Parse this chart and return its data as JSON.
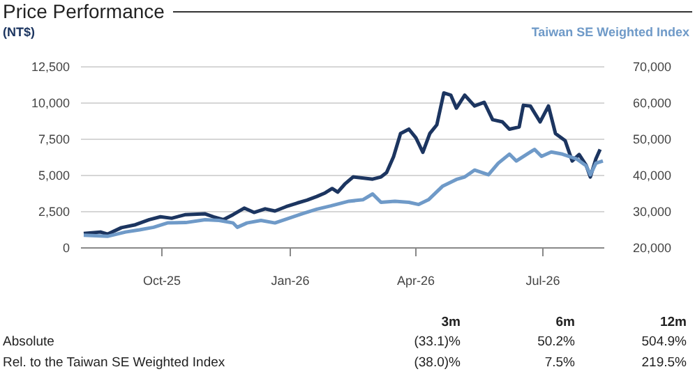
{
  "chart_data": {
    "type": "line",
    "title": "Price Performance",
    "ylabel": "(NT$)",
    "y2label": "Taiwan SE Weighted Index",
    "xlim": [
      "2025-08-04",
      "2026-08-14"
    ],
    "xticks": [
      {
        "value": "2025-10-01",
        "label": "Oct-25"
      },
      {
        "value": "2026-01-01",
        "label": "Jan-26"
      },
      {
        "value": "2026-04-01",
        "label": "Apr-26"
      },
      {
        "value": "2026-07-01",
        "label": "Jul-26"
      }
    ],
    "ylim": [
      0,
      12500
    ],
    "yticks": [
      0,
      {
        "value": 2500,
        "label": "2,500"
      },
      {
        "value": 5000,
        "label": "5,000"
      },
      {
        "value": 7500,
        "label": "7,500"
      },
      {
        "value": 10000,
        "label": "10,000"
      },
      {
        "value": 12500,
        "label": "12,500"
      }
    ],
    "y2lim": [
      20000,
      70000
    ],
    "y2ticks": [
      {
        "value": 20000,
        "label": "20,000"
      },
      {
        "value": 30000,
        "label": "30,000"
      },
      {
        "value": 40000,
        "label": "40,000"
      },
      {
        "value": 50000,
        "label": "50,000"
      },
      {
        "value": 60000,
        "label": "60,000"
      },
      {
        "value": 70000,
        "label": "70,000"
      }
    ],
    "grid": "y",
    "marker": "none",
    "line_style": "solid",
    "series": [
      {
        "color": "#1c3560",
        "x": [
          "2025-08-06",
          "2025-08-18",
          "2025-08-23",
          "2025-09-02",
          "2025-09-12",
          "2025-09-22",
          "2025-09-30",
          "2025-10-08",
          "2025-10-18",
          "2025-11-01",
          "2025-11-07",
          "2025-11-14",
          "2025-11-21",
          "2025-11-29",
          "2025-12-06",
          "2025-12-14",
          "2025-12-21",
          "2025-12-29",
          "2026-01-06",
          "2026-01-13",
          "2026-01-20",
          "2026-01-26",
          "2026-01-31",
          "2026-02-04",
          "2026-02-09",
          "2026-02-15",
          "2026-03-01",
          "2026-03-07",
          "2026-03-11",
          "2026-03-16",
          "2026-03-21",
          "2026-03-27",
          "2026-04-01",
          "2026-04-06",
          "2026-04-11",
          "2026-04-16",
          "2026-04-21",
          "2026-04-26",
          "2026-04-30",
          "2026-05-06",
          "2026-05-13",
          "2026-05-20",
          "2026-05-26",
          "2026-06-02",
          "2026-06-07",
          "2026-06-14",
          "2026-06-17",
          "2026-06-22",
          "2026-06-29",
          "2026-07-05",
          "2026-07-10",
          "2026-07-17",
          "2026-07-22",
          "2026-07-27",
          "2026-08-01",
          "2026-08-04",
          "2026-08-08",
          "2026-08-11"
        ],
        "values": [
          1000,
          1100,
          950,
          1400,
          1600,
          1950,
          2150,
          2050,
          2300,
          2350,
          2150,
          1950,
          2300,
          2750,
          2450,
          2700,
          2550,
          2850,
          3100,
          3300,
          3550,
          3800,
          4100,
          3850,
          4400,
          4900,
          4750,
          4900,
          5200,
          6300,
          7900,
          8200,
          7600,
          6600,
          7900,
          8500,
          10700,
          10550,
          9650,
          10550,
          9800,
          10050,
          8850,
          8700,
          8200,
          8350,
          9850,
          9800,
          8700,
          9800,
          7900,
          7400,
          6000,
          6450,
          5700,
          4900,
          6150,
          6800
        ]
      },
      {
        "color": "#6f9ac8",
        "axis": "y2",
        "x": [
          "2025-08-06",
          "2025-08-23",
          "2025-09-05",
          "2025-09-15",
          "2025-09-25",
          "2025-10-05",
          "2025-10-18",
          "2025-11-01",
          "2025-11-11",
          "2025-11-21",
          "2025-11-24",
          "2025-12-01",
          "2025-12-11",
          "2025-12-21",
          "2025-12-31",
          "2026-01-10",
          "2026-01-20",
          "2026-01-30",
          "2026-02-12",
          "2026-02-22",
          "2026-03-01",
          "2026-03-07",
          "2026-03-17",
          "2026-03-27",
          "2026-04-03",
          "2026-04-10",
          "2026-04-20",
          "2026-04-30",
          "2026-05-06",
          "2026-05-13",
          "2026-05-23",
          "2026-05-30",
          "2026-06-07",
          "2026-06-12",
          "2026-06-25",
          "2026-06-30",
          "2026-07-07",
          "2026-07-15",
          "2026-07-25",
          "2026-08-01",
          "2026-08-04",
          "2026-08-08",
          "2026-08-13"
        ],
        "values": [
          23500,
          23200,
          24400,
          25000,
          25700,
          26900,
          27000,
          27800,
          27600,
          26900,
          25700,
          26900,
          27600,
          26900,
          28200,
          29500,
          30700,
          31600,
          32900,
          33300,
          34900,
          32600,
          32900,
          32600,
          32000,
          33300,
          37000,
          38900,
          39600,
          41500,
          40200,
          43400,
          45900,
          44000,
          47200,
          45300,
          46500,
          45900,
          44600,
          42700,
          40200,
          43400,
          44000
        ]
      }
    ],
    "annotations": [
      "3m",
      "6m",
      "12m",
      "Absolute",
      "(33.1)%",
      "50.2%",
      "504.9%",
      "Rel. to the Taiwan SE Weighted Index",
      "(38.0)%",
      "7.5%",
      "219.5%"
    ]
  }
}
